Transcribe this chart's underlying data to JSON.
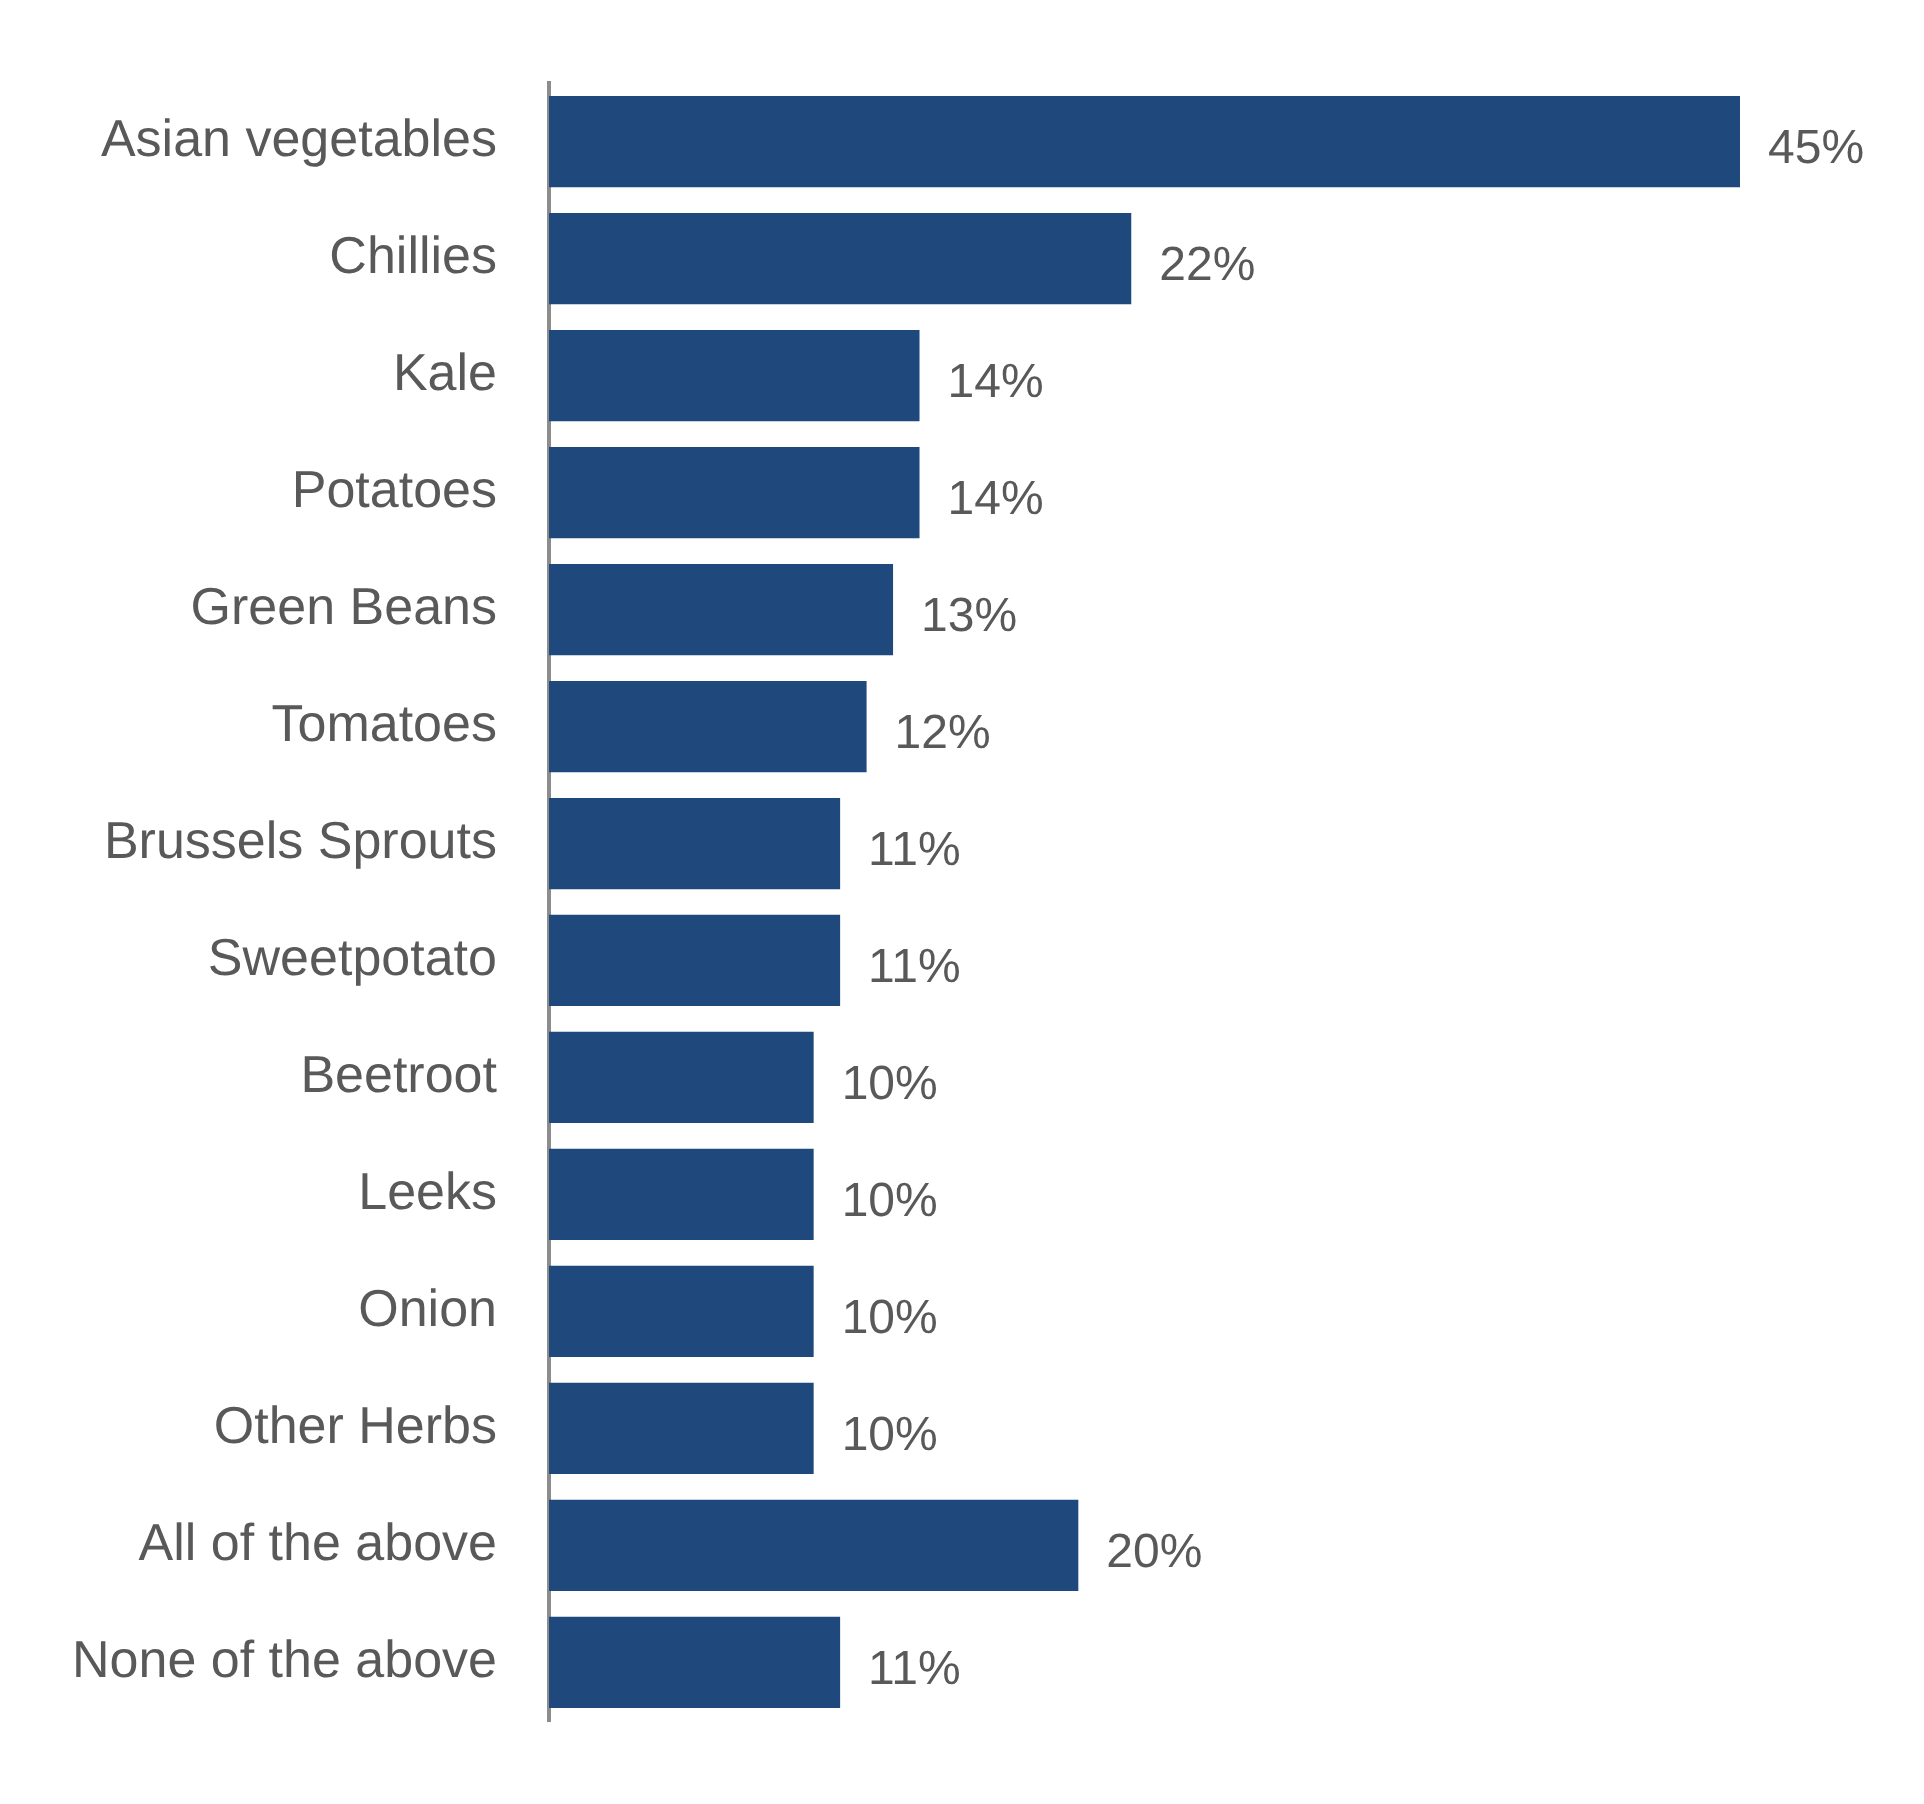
{
  "chart_data": {
    "type": "bar",
    "orientation": "horizontal",
    "categories": [
      "Asian vegetables",
      "Chillies",
      "Kale",
      "Potatoes",
      "Green Beans",
      "Tomatoes",
      "Brussels Sprouts",
      "Sweetpotato",
      "Beetroot",
      "Leeks",
      "Onion",
      "Other Herbs",
      "All of the above",
      "None of the above"
    ],
    "values": [
      45,
      22,
      14,
      14,
      13,
      12,
      11,
      11,
      10,
      10,
      10,
      10,
      20,
      11
    ],
    "value_labels": [
      "45%",
      "22%",
      "14%",
      "14%",
      "13%",
      "12%",
      "11%",
      "11%",
      "10%",
      "10%",
      "10%",
      "10%",
      "20%",
      "11%"
    ],
    "color": "#1f497d"
  }
}
